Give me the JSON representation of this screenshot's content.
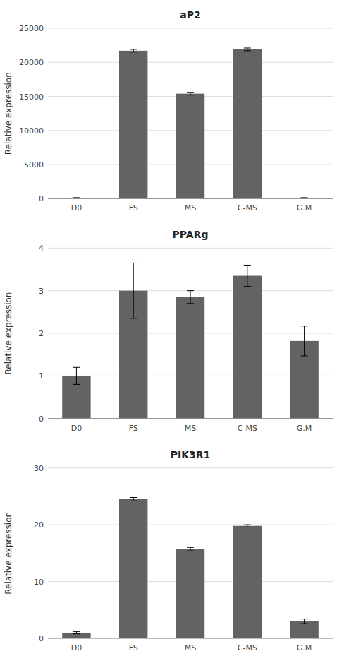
{
  "chart_data": [
    {
      "type": "bar",
      "title": "aP2",
      "ylabel": "Relative expression",
      "categories": [
        "D0",
        "FS",
        "MS",
        "C-MS",
        "G.M"
      ],
      "values": [
        100,
        21700,
        15400,
        21900,
        100
      ],
      "errors": [
        50,
        200,
        200,
        200,
        50
      ],
      "color": "#636363",
      "ylim": [
        0,
        25000
      ],
      "yticks": [
        0,
        5000,
        10000,
        15000,
        20000,
        25000
      ],
      "grid": true
    },
    {
      "type": "bar",
      "title": "PPARg",
      "ylabel": "Relative expression",
      "categories": [
        "D0",
        "FS",
        "MS",
        "C-MS",
        "G.M"
      ],
      "values": [
        1.0,
        3.0,
        2.85,
        3.35,
        1.82
      ],
      "errors": [
        0.2,
        0.65,
        0.15,
        0.25,
        0.35
      ],
      "color": "#636363",
      "ylim": [
        0,
        4
      ],
      "yticks": [
        0,
        1,
        2,
        3,
        4
      ],
      "grid": true
    },
    {
      "type": "bar",
      "title": "PIK3R1",
      "ylabel": "Relative expression",
      "categories": [
        "D0",
        "FS",
        "MS",
        "C-MS",
        "G.M"
      ],
      "values": [
        1.0,
        24.5,
        15.7,
        19.8,
        3.0
      ],
      "errors": [
        0.2,
        0.3,
        0.3,
        0.2,
        0.4
      ],
      "color": "#636363",
      "ylim": [
        0,
        30
      ],
      "yticks": [
        0,
        10,
        20,
        30
      ],
      "grid": true
    }
  ]
}
